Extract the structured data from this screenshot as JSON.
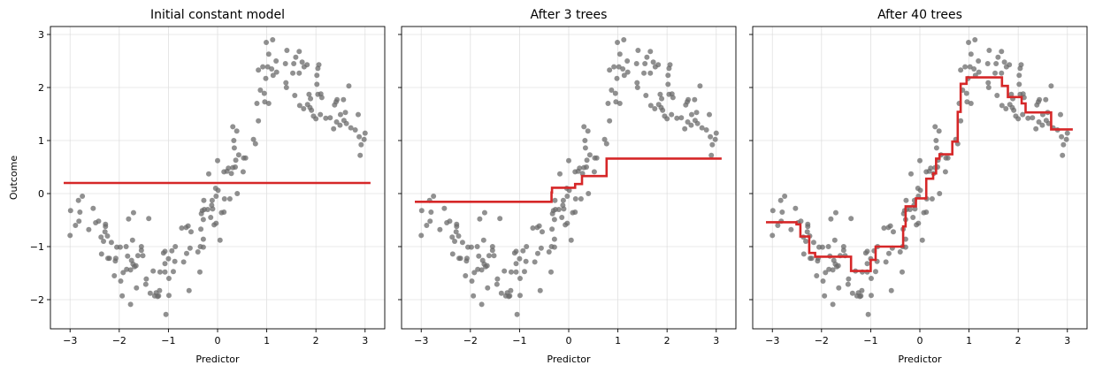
{
  "chart_data": [
    {
      "type": "scatter+line",
      "title": "Initial constant model",
      "xlabel": "Predictor",
      "ylabel": "Outcome",
      "xlim": [
        -3.4,
        3.4
      ],
      "ylim": [
        -2.55,
        3.15
      ],
      "xticks": [
        -3,
        -2,
        -1,
        0,
        1,
        2,
        3
      ],
      "yticks": [
        -2,
        -1,
        0,
        1,
        2,
        3
      ],
      "xtick_labels": [
        "−3",
        "−2",
        "−1",
        "0",
        "1",
        "2",
        "3"
      ],
      "ytick_labels": [
        "−2",
        "−1",
        "0",
        "1",
        "2",
        "3"
      ],
      "grid": true,
      "step_edges": [
        -3.13,
        3.11
      ],
      "step_values": [
        0.2
      ]
    },
    {
      "type": "scatter+line",
      "title": "After 3 trees",
      "xlabel": "Predictor",
      "xlim": [
        -3.4,
        3.4
      ],
      "ylim": [
        -2.55,
        3.15
      ],
      "xticks": [
        -3,
        -2,
        -1,
        0,
        1,
        2,
        3
      ],
      "yticks": [
        -2,
        -1,
        0,
        1,
        2,
        3
      ],
      "xtick_labels": [
        "−3",
        "−2",
        "−1",
        "0",
        "1",
        "2",
        "3"
      ],
      "grid": true,
      "step_edges": [
        -3.13,
        -0.35,
        -0.34,
        0.13,
        0.27,
        0.77,
        3.11
      ],
      "step_values": [
        -0.155,
        0.02,
        0.11,
        0.18,
        0.33,
        0.66
      ]
    },
    {
      "type": "scatter+line",
      "title": "After 40 trees",
      "xlabel": "Predictor",
      "xlim": [
        -3.4,
        3.4
      ],
      "ylim": [
        -2.55,
        3.15
      ],
      "xticks": [
        -3,
        -2,
        -1,
        0,
        1,
        2,
        3
      ],
      "yticks": [
        -2,
        -1,
        0,
        1,
        2,
        3
      ],
      "xtick_labels": [
        "−3",
        "−2",
        "−1",
        "0",
        "1",
        "2",
        "3"
      ],
      "grid": true,
      "step_edges": [
        -3.13,
        -2.51,
        -2.43,
        -2.25,
        -2.13,
        -1.4,
        -1.0,
        -0.9,
        -0.34,
        -0.29,
        -0.08,
        0.13,
        0.27,
        0.33,
        0.4,
        0.66,
        0.77,
        0.83,
        0.95,
        1.67,
        1.79,
        2.07,
        2.15,
        2.67,
        3.11
      ],
      "step_values": [
        -0.54,
        -0.58,
        -0.81,
        -1.12,
        -1.19,
        -1.46,
        -1.25,
        -1.0,
        -0.62,
        -0.24,
        -0.09,
        0.28,
        0.38,
        0.66,
        0.74,
        0.98,
        1.54,
        2.07,
        2.19,
        2.03,
        1.82,
        1.7,
        1.53,
        1.21
      ]
    }
  ],
  "points": [
    [
      -3.0,
      -0.79
    ],
    [
      -2.99,
      -0.32
    ],
    [
      -2.89,
      -0.6
    ],
    [
      -2.83,
      -0.13
    ],
    [
      -2.82,
      -0.52
    ],
    [
      -2.8,
      -0.35
    ],
    [
      -2.75,
      -0.05
    ],
    [
      -2.62,
      -0.68
    ],
    [
      -2.53,
      -0.28
    ],
    [
      -2.48,
      -0.55
    ],
    [
      -2.42,
      -0.52
    ],
    [
      -2.37,
      -0.82
    ],
    [
      -2.36,
      -1.14
    ],
    [
      -2.32,
      -0.9
    ],
    [
      -2.29,
      -0.72
    ],
    [
      -2.28,
      -0.62
    ],
    [
      -2.28,
      -0.58
    ],
    [
      -2.24,
      -0.8
    ],
    [
      -2.23,
      -1.22
    ],
    [
      -2.2,
      -1.22
    ],
    [
      -2.16,
      -0.92
    ],
    [
      -2.1,
      -1.55
    ],
    [
      -2.07,
      -1.22
    ],
    [
      -2.08,
      -1.27
    ],
    [
      -2.05,
      -1.01
    ],
    [
      -1.98,
      -1.01
    ],
    [
      -1.97,
      -1.65
    ],
    [
      -1.94,
      -1.93
    ],
    [
      -1.92,
      -1.49
    ],
    [
      -1.86,
      -1.0
    ],
    [
      -1.85,
      -1.43
    ],
    [
      -1.83,
      -1.18
    ],
    [
      -1.81,
      -0.48
    ],
    [
      -1.77,
      -2.09
    ],
    [
      -1.77,
      -1.44
    ],
    [
      -1.75,
      -1.26
    ],
    [
      -1.73,
      -0.88
    ],
    [
      -1.72,
      -1.33
    ],
    [
      -1.71,
      -0.36
    ],
    [
      -1.69,
      -1.38
    ],
    [
      -1.66,
      -1.36
    ],
    [
      -1.65,
      -1.78
    ],
    [
      -1.62,
      -1.17
    ],
    [
      -1.55,
      -1.07
    ],
    [
      -1.55,
      -1.0
    ],
    [
      -1.52,
      -1.17
    ],
    [
      -1.46,
      -1.71
    ],
    [
      -1.45,
      -1.61
    ],
    [
      -1.4,
      -0.47
    ],
    [
      -1.37,
      -1.88
    ],
    [
      -1.31,
      -1.46
    ],
    [
      -1.28,
      -1.93
    ],
    [
      -1.25,
      -1.87
    ],
    [
      -1.22,
      -1.94
    ],
    [
      -1.18,
      -1.83
    ],
    [
      -1.2,
      -1.93
    ],
    [
      -1.17,
      -1.48
    ],
    [
      -1.1,
      -1.12
    ],
    [
      -1.07,
      -1.09
    ],
    [
      -1.07,
      -1.48
    ],
    [
      -1.07,
      -1.32
    ],
    [
      -1.05,
      -2.28
    ],
    [
      -1.0,
      -1.23
    ],
    [
      -0.99,
      -1.6
    ],
    [
      -0.99,
      -1.92
    ],
    [
      -0.93,
      -1.08
    ],
    [
      -0.9,
      -1.47
    ],
    [
      -0.87,
      -1.28
    ],
    [
      -0.86,
      -1.0
    ],
    [
      -0.73,
      -0.65
    ],
    [
      -0.69,
      -1.29
    ],
    [
      -0.64,
      -0.64
    ],
    [
      -0.63,
      -1.13
    ],
    [
      -0.6,
      -0.61
    ],
    [
      -0.58,
      -1.83
    ],
    [
      -0.56,
      -1.03
    ],
    [
      -0.54,
      -0.72
    ],
    [
      -0.4,
      -1.1
    ],
    [
      -0.36,
      -1.48
    ],
    [
      -0.35,
      -1.0
    ],
    [
      -0.34,
      -0.67
    ],
    [
      -0.33,
      -0.38
    ],
    [
      -0.31,
      -0.32
    ],
    [
      -0.29,
      -0.49
    ],
    [
      -0.29,
      -0.86
    ],
    [
      -0.29,
      -1.01
    ],
    [
      -0.28,
      -0.13
    ],
    [
      -0.27,
      -0.3
    ],
    [
      -0.2,
      -0.3
    ],
    [
      -0.18,
      0.37
    ],
    [
      -0.14,
      -0.45
    ],
    [
      -0.12,
      -0.22
    ],
    [
      -0.11,
      -0.13
    ],
    [
      -0.1,
      -0.29
    ],
    [
      -0.07,
      -0.59
    ],
    [
      -0.04,
      0.1
    ],
    [
      -0.03,
      -0.56
    ],
    [
      0.0,
      0.62
    ],
    [
      0.01,
      0.06
    ],
    [
      -0.03,
      -0.05
    ],
    [
      0.05,
      -0.88
    ],
    [
      0.08,
      -0.36
    ],
    [
      0.13,
      0.41
    ],
    [
      0.13,
      -0.35
    ],
    [
      0.14,
      -0.1
    ],
    [
      0.19,
      0.42
    ],
    [
      0.22,
      0.48
    ],
    [
      0.25,
      -0.1
    ],
    [
      0.28,
      0.38
    ],
    [
      0.31,
      0.49
    ],
    [
      0.31,
      1.26
    ],
    [
      0.33,
      1.0
    ],
    [
      0.34,
      0.86
    ],
    [
      0.36,
      0.5
    ],
    [
      0.37,
      0.63
    ],
    [
      0.39,
      1.18
    ],
    [
      0.4,
      0.0
    ],
    [
      0.43,
      0.73
    ],
    [
      0.52,
      0.41
    ],
    [
      0.53,
      0.67
    ],
    [
      0.57,
      0.67
    ],
    [
      0.73,
      1.02
    ],
    [
      0.77,
      0.94
    ],
    [
      0.8,
      1.7
    ],
    [
      0.83,
      1.37
    ],
    [
      0.83,
      2.33
    ],
    [
      0.87,
      1.95
    ],
    [
      0.92,
      2.39
    ],
    [
      0.95,
      1.89
    ],
    [
      0.96,
      1.73
    ],
    [
      0.98,
      2.17
    ],
    [
      0.99,
      2.85
    ],
    [
      1.02,
      2.39
    ],
    [
      1.04,
      1.7
    ],
    [
      1.04,
      2.63
    ],
    [
      1.1,
      2.35
    ],
    [
      1.12,
      2.9
    ],
    [
      1.13,
      2.23
    ],
    [
      1.19,
      2.5
    ],
    [
      1.2,
      2.29
    ],
    [
      1.38,
      2.45
    ],
    [
      1.39,
      2.09
    ],
    [
      1.4,
      2.0
    ],
    [
      1.41,
      2.7
    ],
    [
      1.53,
      2.27
    ],
    [
      1.55,
      2.45
    ],
    [
      1.57,
      1.85
    ],
    [
      1.59,
      2.57
    ],
    [
      1.66,
      2.27
    ],
    [
      1.66,
      2.68
    ],
    [
      1.67,
      1.66
    ],
    [
      1.72,
      2.48
    ],
    [
      1.75,
      1.6
    ],
    [
      1.76,
      2.39
    ],
    [
      1.82,
      2.43
    ],
    [
      1.83,
      1.68
    ],
    [
      1.86,
      1.87
    ],
    [
      1.88,
      1.62
    ],
    [
      1.89,
      1.79
    ],
    [
      1.91,
      1.57
    ],
    [
      1.95,
      1.46
    ],
    [
      2.0,
      1.41
    ],
    [
      2.02,
      2.23
    ],
    [
      2.02,
      2.06
    ],
    [
      2.04,
      1.87
    ],
    [
      2.04,
      2.36
    ],
    [
      2.06,
      2.43
    ],
    [
      2.09,
      1.49
    ],
    [
      2.1,
      1.88
    ],
    [
      2.12,
      1.81
    ],
    [
      2.2,
      1.42
    ],
    [
      2.29,
      1.43
    ],
    [
      2.36,
      1.22
    ],
    [
      2.38,
      1.67
    ],
    [
      2.41,
      1.73
    ],
    [
      2.42,
      1.35
    ],
    [
      2.43,
      1.77
    ],
    [
      2.49,
      1.29
    ],
    [
      2.5,
      1.49
    ],
    [
      2.56,
      1.77
    ],
    [
      2.57,
      1.38
    ],
    [
      2.6,
      1.53
    ],
    [
      2.62,
      1.32
    ],
    [
      2.67,
      2.03
    ],
    [
      2.71,
      1.24
    ],
    [
      2.8,
      1.2
    ],
    [
      2.86,
      1.49
    ],
    [
      2.88,
      1.07
    ],
    [
      2.9,
      0.72
    ],
    [
      2.92,
      0.92
    ],
    [
      2.98,
      1.02
    ],
    [
      3.0,
      1.14
    ]
  ],
  "colors": {
    "points": "#6b6b6b",
    "model_line": "#d62728",
    "grid": "#e0e0e0"
  }
}
